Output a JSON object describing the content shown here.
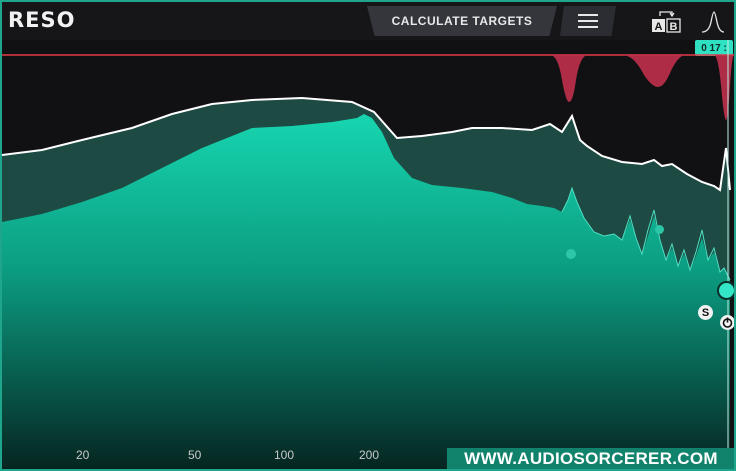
{
  "app": {
    "title": "RESO"
  },
  "toolbar": {
    "calculate_label": "CALCULATE TARGETS",
    "ab_label_a": "A",
    "ab_label_b": "B",
    "readout": "0 17 :"
  },
  "freq_labels": [
    {
      "label": "20"
    },
    {
      "label": "50"
    },
    {
      "label": "100"
    },
    {
      "label": "200"
    }
  ],
  "band": {
    "solo_label": "S"
  },
  "watermark": "WWW.AUDIOSORCERER.COM",
  "icons": [
    "hamburger-menu-icon",
    "ab-compare-icon",
    "peak-shape-icon",
    "power-icon"
  ],
  "colors": {
    "accent": "#1fa58c",
    "target_curve": "#ffffff",
    "spectrum_fill": "#10c9a4",
    "resonance_cut": "#c0304a",
    "threshold_line": "#e23a48"
  }
}
